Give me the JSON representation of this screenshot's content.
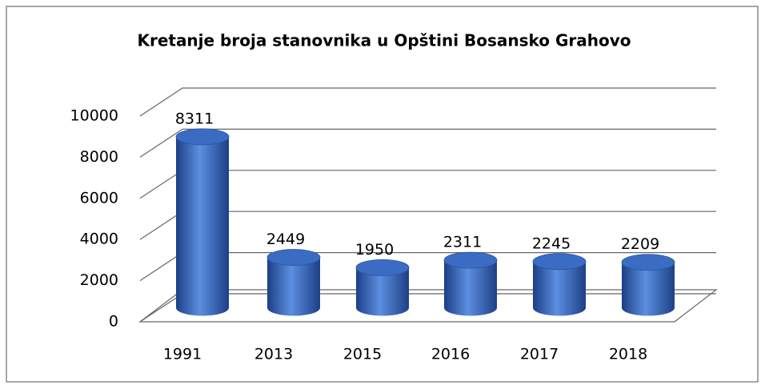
{
  "chart_data": {
    "type": "bar",
    "title": "Kretanje broja stanovnika u Opštini Bosansko Grahovo",
    "categories": [
      "1991",
      "2013",
      "2015",
      "2016",
      "2017",
      "2018"
    ],
    "values": [
      8311,
      2449,
      1950,
      2311,
      2245,
      2209
    ],
    "color": "#3a6cc4",
    "ylim": [
      0,
      10000
    ],
    "yticks": [
      0,
      2000,
      4000,
      6000,
      8000,
      10000
    ],
    "grid": true
  }
}
